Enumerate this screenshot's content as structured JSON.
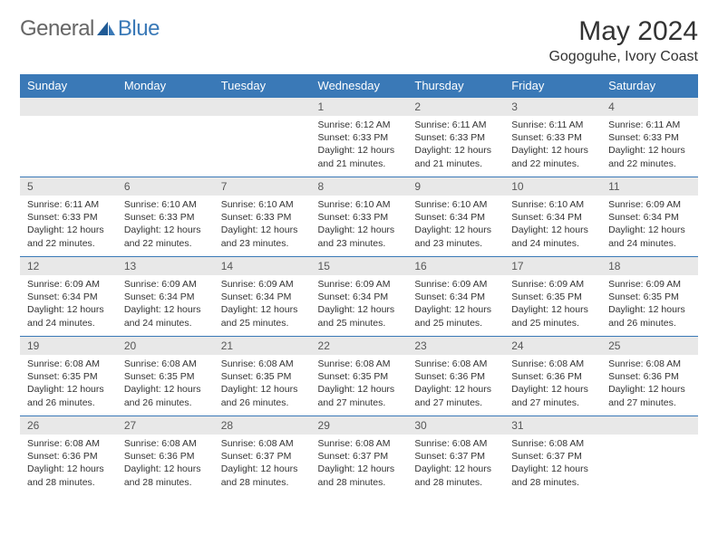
{
  "brand": {
    "part1": "General",
    "part2": "Blue"
  },
  "title": "May 2024",
  "location": "Gogoguhe, Ivory Coast",
  "colors": {
    "header_bg": "#3a79b7",
    "header_text": "#ffffff",
    "daynum_bg": "#e8e8e8",
    "daynum_text": "#575757",
    "row_border": "#3a79b7",
    "body_text": "#333333",
    "logo_gray": "#666666",
    "logo_blue": "#3a79b7"
  },
  "weekdays": [
    "Sunday",
    "Monday",
    "Tuesday",
    "Wednesday",
    "Thursday",
    "Friday",
    "Saturday"
  ],
  "month": {
    "year": 2024,
    "month": 5,
    "first_weekday_index": 3,
    "num_days": 31
  },
  "days": {
    "1": {
      "sunrise": "6:12 AM",
      "sunset": "6:33 PM",
      "daylight": "12 hours and 21 minutes."
    },
    "2": {
      "sunrise": "6:11 AM",
      "sunset": "6:33 PM",
      "daylight": "12 hours and 21 minutes."
    },
    "3": {
      "sunrise": "6:11 AM",
      "sunset": "6:33 PM",
      "daylight": "12 hours and 22 minutes."
    },
    "4": {
      "sunrise": "6:11 AM",
      "sunset": "6:33 PM",
      "daylight": "12 hours and 22 minutes."
    },
    "5": {
      "sunrise": "6:11 AM",
      "sunset": "6:33 PM",
      "daylight": "12 hours and 22 minutes."
    },
    "6": {
      "sunrise": "6:10 AM",
      "sunset": "6:33 PM",
      "daylight": "12 hours and 22 minutes."
    },
    "7": {
      "sunrise": "6:10 AM",
      "sunset": "6:33 PM",
      "daylight": "12 hours and 23 minutes."
    },
    "8": {
      "sunrise": "6:10 AM",
      "sunset": "6:33 PM",
      "daylight": "12 hours and 23 minutes."
    },
    "9": {
      "sunrise": "6:10 AM",
      "sunset": "6:34 PM",
      "daylight": "12 hours and 23 minutes."
    },
    "10": {
      "sunrise": "6:10 AM",
      "sunset": "6:34 PM",
      "daylight": "12 hours and 24 minutes."
    },
    "11": {
      "sunrise": "6:09 AM",
      "sunset": "6:34 PM",
      "daylight": "12 hours and 24 minutes."
    },
    "12": {
      "sunrise": "6:09 AM",
      "sunset": "6:34 PM",
      "daylight": "12 hours and 24 minutes."
    },
    "13": {
      "sunrise": "6:09 AM",
      "sunset": "6:34 PM",
      "daylight": "12 hours and 24 minutes."
    },
    "14": {
      "sunrise": "6:09 AM",
      "sunset": "6:34 PM",
      "daylight": "12 hours and 25 minutes."
    },
    "15": {
      "sunrise": "6:09 AM",
      "sunset": "6:34 PM",
      "daylight": "12 hours and 25 minutes."
    },
    "16": {
      "sunrise": "6:09 AM",
      "sunset": "6:34 PM",
      "daylight": "12 hours and 25 minutes."
    },
    "17": {
      "sunrise": "6:09 AM",
      "sunset": "6:35 PM",
      "daylight": "12 hours and 25 minutes."
    },
    "18": {
      "sunrise": "6:09 AM",
      "sunset": "6:35 PM",
      "daylight": "12 hours and 26 minutes."
    },
    "19": {
      "sunrise": "6:08 AM",
      "sunset": "6:35 PM",
      "daylight": "12 hours and 26 minutes."
    },
    "20": {
      "sunrise": "6:08 AM",
      "sunset": "6:35 PM",
      "daylight": "12 hours and 26 minutes."
    },
    "21": {
      "sunrise": "6:08 AM",
      "sunset": "6:35 PM",
      "daylight": "12 hours and 26 minutes."
    },
    "22": {
      "sunrise": "6:08 AM",
      "sunset": "6:35 PM",
      "daylight": "12 hours and 27 minutes."
    },
    "23": {
      "sunrise": "6:08 AM",
      "sunset": "6:36 PM",
      "daylight": "12 hours and 27 minutes."
    },
    "24": {
      "sunrise": "6:08 AM",
      "sunset": "6:36 PM",
      "daylight": "12 hours and 27 minutes."
    },
    "25": {
      "sunrise": "6:08 AM",
      "sunset": "6:36 PM",
      "daylight": "12 hours and 27 minutes."
    },
    "26": {
      "sunrise": "6:08 AM",
      "sunset": "6:36 PM",
      "daylight": "12 hours and 28 minutes."
    },
    "27": {
      "sunrise": "6:08 AM",
      "sunset": "6:36 PM",
      "daylight": "12 hours and 28 minutes."
    },
    "28": {
      "sunrise": "6:08 AM",
      "sunset": "6:37 PM",
      "daylight": "12 hours and 28 minutes."
    },
    "29": {
      "sunrise": "6:08 AM",
      "sunset": "6:37 PM",
      "daylight": "12 hours and 28 minutes."
    },
    "30": {
      "sunrise": "6:08 AM",
      "sunset": "6:37 PM",
      "daylight": "12 hours and 28 minutes."
    },
    "31": {
      "sunrise": "6:08 AM",
      "sunset": "6:37 PM",
      "daylight": "12 hours and 28 minutes."
    }
  },
  "labels": {
    "sunrise_prefix": "Sunrise: ",
    "sunset_prefix": "Sunset: ",
    "daylight_prefix": "Daylight: "
  }
}
